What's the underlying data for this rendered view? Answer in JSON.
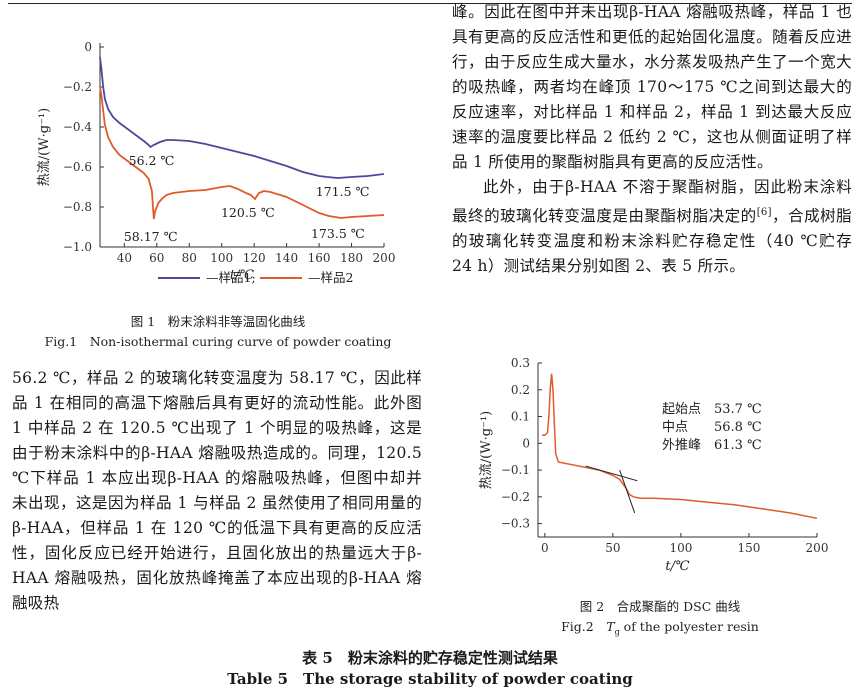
{
  "figure1": {
    "caption_cn": "图 1　粉末涂料非等温固化曲线",
    "caption_en": "Fig.1　Non-isothermal curing curve of powder coating"
  },
  "figure2": {
    "caption_cn": "图 2　合成聚酯的 DSC 曲线",
    "caption_en_prefix": "Fig.2　",
    "caption_en_t": "T",
    "caption_en_sub": "g",
    "caption_en_suffix": " of the polyester resin"
  },
  "left_column": {
    "text": "56.2 ℃，样品 2 的玻璃化转变温度为 58.17 ℃，因此样品 1 在相同的高温下熔融后具有更好的流动性能。此外图 1 中样品 2 在 120.5 ℃出现了 1 个明显的吸热峰，这是由于粉末涂料中的β-HAA 熔融吸热造成的。同理，120.5 ℃下样品 1 本应出现β-HAA 的熔融吸热峰，但图中却并未出现，这是因为样品 1 与样品 2 虽然使用了相同用量的β-HAA，但样品 1 在 120 ℃的低温下具有更高的反应活性，固化反应已经开始进行，且固化放出的热量远大于β-HAA 熔融吸热，固化放热峰掩盖了本应出现的β-HAA 熔融吸热"
  },
  "right_column": {
    "para1": "峰。因此在图中并未出现β-HAA 熔融吸热峰，样品 1 也具有更高的反应活性和更低的起始固化温度。随着反应进行，由于反应生成大量水，水分蒸发吸热产生了一个宽大的吸热峰，两者均在峰顶 170～175 ℃之间到达最大的反应速率，对比样品 1 和样品 2，样品 1 到达最大反应速率的温度要比样品 2 低约 2 ℃，这也从侧面证明了样品 1 所使用的聚酯树脂具有更高的反应活性。",
    "para2_a": "此外，由于β-HAA 不溶于聚酯树脂，因此粉末涂料最终的玻璃化转变温度是由聚酯树脂决定的",
    "para2_ref": "[6]",
    "para2_b": "，合成树脂的玻璃化转变温度和粉末涂料贮存稳定性（40 ℃贮存 24 h）测试结果分别如图 2、表 5 所示。"
  },
  "table5": {
    "title_cn": "表 5　粉末涂料的贮存稳定性测试结果",
    "title_en": "Table 5　The storage stability of powder coating"
  },
  "chart_data": [
    {
      "type": "line",
      "xlabel": "t/℃",
      "ylabel": "热流/(W·g⁻¹)",
      "xlim": [
        25,
        200
      ],
      "ylim": [
        -1.0,
        0
      ],
      "xticks": [
        40,
        60,
        80,
        100,
        120,
        140,
        160,
        180,
        200
      ],
      "yticks": [
        0,
        -0.2,
        -0.4,
        -0.6,
        -0.8,
        -1.0
      ],
      "legend_position": "bottom",
      "series": [
        {
          "name": "样品1",
          "color": "#4a4a9a",
          "x": [
            25,
            26,
            27,
            28,
            30,
            33,
            37,
            42,
            47,
            52,
            55,
            56.2,
            58,
            62,
            66,
            70,
            80,
            90,
            100,
            110,
            120,
            130,
            140,
            150,
            160,
            165,
            171.5,
            180,
            190,
            200
          ],
          "y": [
            -0.05,
            -0.12,
            -0.2,
            -0.26,
            -0.31,
            -0.35,
            -0.38,
            -0.41,
            -0.44,
            -0.47,
            -0.49,
            -0.5,
            -0.49,
            -0.475,
            -0.465,
            -0.465,
            -0.47,
            -0.485,
            -0.505,
            -0.525,
            -0.545,
            -0.57,
            -0.595,
            -0.625,
            -0.645,
            -0.65,
            -0.655,
            -0.65,
            -0.645,
            -0.635
          ]
        },
        {
          "name": "样品2",
          "color": "#e05a2a",
          "x": [
            25,
            26,
            27,
            28,
            30,
            33,
            37,
            42,
            47,
            52,
            55,
            57,
            58.17,
            59,
            61,
            63,
            66,
            70,
            80,
            90,
            100,
            105,
            110,
            115,
            118,
            120.5,
            123,
            126,
            130,
            140,
            150,
            160,
            166,
            173.5,
            180,
            190,
            200
          ],
          "y": [
            -0.2,
            -0.25,
            -0.32,
            -0.39,
            -0.45,
            -0.5,
            -0.54,
            -0.57,
            -0.6,
            -0.63,
            -0.66,
            -0.72,
            -0.86,
            -0.82,
            -0.78,
            -0.76,
            -0.74,
            -0.73,
            -0.72,
            -0.715,
            -0.7,
            -0.695,
            -0.71,
            -0.73,
            -0.74,
            -0.76,
            -0.73,
            -0.72,
            -0.725,
            -0.75,
            -0.79,
            -0.83,
            -0.845,
            -0.855,
            -0.85,
            -0.845,
            -0.84
          ]
        }
      ],
      "annotations": [
        {
          "text": "56.2 ℃",
          "x": 56.2,
          "y": -0.5
        },
        {
          "text": "58.17 ℃",
          "x": 58.17,
          "y": -0.86
        },
        {
          "text": "120.5 ℃",
          "x": 120.5,
          "y": -0.76
        },
        {
          "text": "171.5 ℃",
          "x": 171.5,
          "y": -0.655
        },
        {
          "text": "173.5 ℃",
          "x": 173.5,
          "y": -0.855
        }
      ]
    },
    {
      "type": "line",
      "xlabel": "t/℃",
      "ylabel": "热流/(W·g⁻¹)",
      "xlim": [
        -5,
        200
      ],
      "ylim": [
        -0.35,
        0.3
      ],
      "xticks": [
        0,
        50,
        100,
        150,
        200
      ],
      "yticks": [
        0.3,
        0.2,
        0.1,
        0,
        -0.1,
        -0.2,
        -0.3
      ],
      "series": [
        {
          "name": "",
          "color": "#e05a2a",
          "x": [
            -2,
            0,
            2,
            3,
            4,
            5,
            6,
            7,
            8,
            10,
            15,
            20,
            30,
            40,
            50,
            55,
            60,
            62,
            65,
            70,
            80,
            100,
            120,
            140,
            160,
            180,
            200
          ],
          "y": [
            0.03,
            0.03,
            0.04,
            0.1,
            0.2,
            0.26,
            0.2,
            0.08,
            -0.04,
            -0.07,
            -0.075,
            -0.08,
            -0.09,
            -0.1,
            -0.12,
            -0.135,
            -0.17,
            -0.19,
            -0.2,
            -0.205,
            -0.205,
            -0.21,
            -0.22,
            -0.23,
            -0.245,
            -0.26,
            -0.28
          ]
        }
      ],
      "tangent_lines": [
        {
          "from": [
            30,
            -0.085
          ],
          "to": [
            68,
            -0.14
          ]
        },
        {
          "from": [
            55,
            -0.1
          ],
          "to": [
            66,
            -0.26
          ]
        }
      ],
      "annotations": [
        {
          "label": "起始点",
          "value": "53.7 ℃"
        },
        {
          "label": "中点",
          "value": "56.8 ℃"
        },
        {
          "label": "外推峰",
          "value": "61.3 ℃"
        }
      ]
    }
  ]
}
